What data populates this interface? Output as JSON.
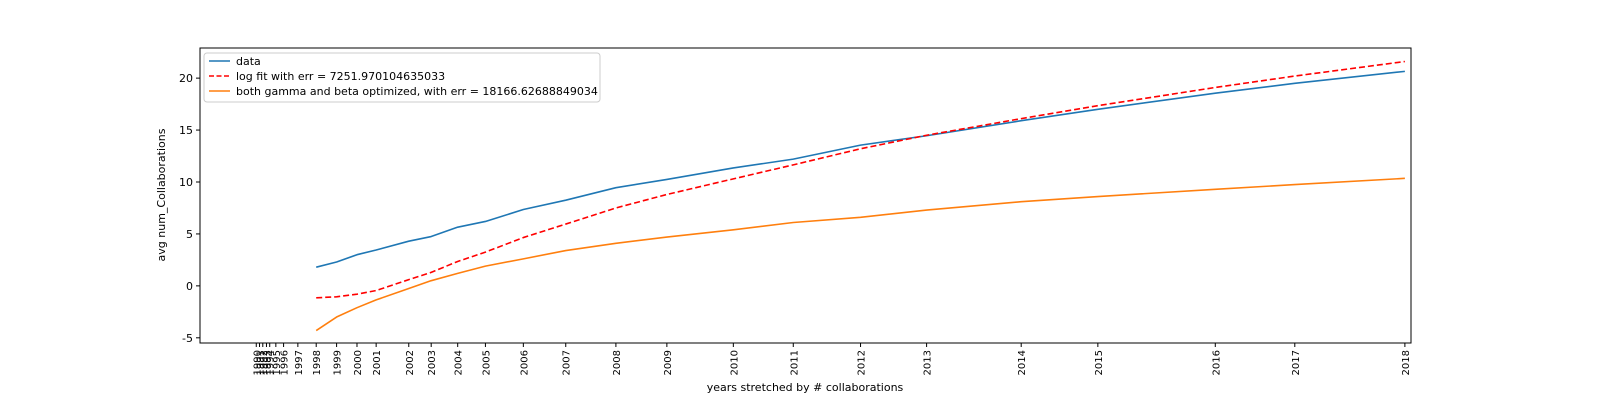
{
  "chart_data": {
    "type": "line",
    "title": "",
    "xlabel": "years stretched by # collaborations",
    "ylabel": "avg num_Collaborations",
    "xlim": [
      -1.3,
      28.4
    ],
    "ylim": [
      -5.5,
      22.9
    ],
    "grid": false,
    "legend_position": "top-left",
    "yticks": [
      -5,
      0,
      5,
      10,
      15,
      20
    ],
    "xticks": [
      {
        "label": "1990",
        "x": 0.08
      },
      {
        "label": "1991",
        "x": 0.16
      },
      {
        "label": "1992",
        "x": 0.24
      },
      {
        "label": "1993",
        "x": 0.33
      },
      {
        "label": "1994",
        "x": 0.41
      },
      {
        "label": "1995",
        "x": 0.56
      },
      {
        "label": "1996",
        "x": 0.75
      },
      {
        "label": "1997",
        "x": 1.1
      },
      {
        "label": "1998",
        "x": 1.55
      },
      {
        "label": "1999",
        "x": 2.05
      },
      {
        "label": "2000",
        "x": 2.55
      },
      {
        "label": "2001",
        "x": 3.02
      },
      {
        "label": "2002",
        "x": 3.82
      },
      {
        "label": "2003",
        "x": 4.37
      },
      {
        "label": "2004",
        "x": 5.02
      },
      {
        "label": "2005",
        "x": 5.7
      },
      {
        "label": "2006",
        "x": 6.63
      },
      {
        "label": "2007",
        "x": 7.67
      },
      {
        "label": "2008",
        "x": 8.9
      },
      {
        "label": "2009",
        "x": 10.15
      },
      {
        "label": "2010",
        "x": 11.78
      },
      {
        "label": "2011",
        "x": 13.25
      },
      {
        "label": "2012",
        "x": 14.9
      },
      {
        "label": "2013",
        "x": 16.52
      },
      {
        "label": "2014",
        "x": 18.84
      },
      {
        "label": "2015",
        "x": 20.72
      },
      {
        "label": "2016",
        "x": 23.6
      },
      {
        "label": "2017",
        "x": 25.55
      },
      {
        "label": "2018",
        "x": 28.25
      }
    ],
    "series": [
      {
        "name": "data",
        "color": "#1f77b4",
        "dash": "solid",
        "points": [
          [
            1.55,
            1.8
          ],
          [
            2.05,
            2.3
          ],
          [
            2.55,
            3.0
          ],
          [
            3.02,
            3.45
          ],
          [
            3.82,
            4.3
          ],
          [
            4.37,
            4.75
          ],
          [
            5.02,
            5.65
          ],
          [
            5.7,
            6.2
          ],
          [
            6.63,
            7.35
          ],
          [
            7.67,
            8.25
          ],
          [
            8.9,
            9.45
          ],
          [
            10.15,
            10.25
          ],
          [
            11.78,
            11.35
          ],
          [
            13.25,
            12.2
          ],
          [
            14.9,
            13.55
          ],
          [
            16.52,
            14.45
          ],
          [
            18.84,
            15.9
          ],
          [
            20.72,
            17.0
          ],
          [
            23.6,
            18.55
          ],
          [
            25.55,
            19.5
          ],
          [
            28.25,
            20.65
          ]
        ]
      },
      {
        "name": "log fit with err = 7251.970104635033",
        "color": "#ff0000",
        "dash": "dashed",
        "points": [
          [
            1.55,
            -1.15
          ],
          [
            2.05,
            -1.05
          ],
          [
            2.55,
            -0.8
          ],
          [
            3.02,
            -0.45
          ],
          [
            3.82,
            0.6
          ],
          [
            4.37,
            1.3
          ],
          [
            5.02,
            2.35
          ],
          [
            5.7,
            3.25
          ],
          [
            6.63,
            4.65
          ],
          [
            7.67,
            5.95
          ],
          [
            8.9,
            7.5
          ],
          [
            10.15,
            8.8
          ],
          [
            11.78,
            10.3
          ],
          [
            13.25,
            11.65
          ],
          [
            14.9,
            13.2
          ],
          [
            16.52,
            14.5
          ],
          [
            18.84,
            16.1
          ],
          [
            20.72,
            17.35
          ],
          [
            23.6,
            19.1
          ],
          [
            25.55,
            20.2
          ],
          [
            28.25,
            21.6
          ]
        ]
      },
      {
        "name": "both gamma and beta optimized, with err = 18166.62688849034",
        "color": "#ff7f0e",
        "dash": "solid",
        "points": [
          [
            1.55,
            -4.3
          ],
          [
            2.05,
            -3.0
          ],
          [
            2.55,
            -2.1
          ],
          [
            3.02,
            -1.35
          ],
          [
            3.82,
            -0.25
          ],
          [
            4.37,
            0.5
          ],
          [
            5.02,
            1.2
          ],
          [
            5.7,
            1.9
          ],
          [
            6.63,
            2.6
          ],
          [
            7.67,
            3.4
          ],
          [
            8.9,
            4.1
          ],
          [
            10.15,
            4.7
          ],
          [
            11.78,
            5.4
          ],
          [
            13.25,
            6.1
          ],
          [
            14.9,
            6.6
          ],
          [
            16.52,
            7.3
          ],
          [
            18.84,
            8.1
          ],
          [
            20.72,
            8.6
          ],
          [
            23.6,
            9.3
          ],
          [
            25.55,
            9.75
          ],
          [
            28.25,
            10.35
          ]
        ]
      }
    ]
  }
}
